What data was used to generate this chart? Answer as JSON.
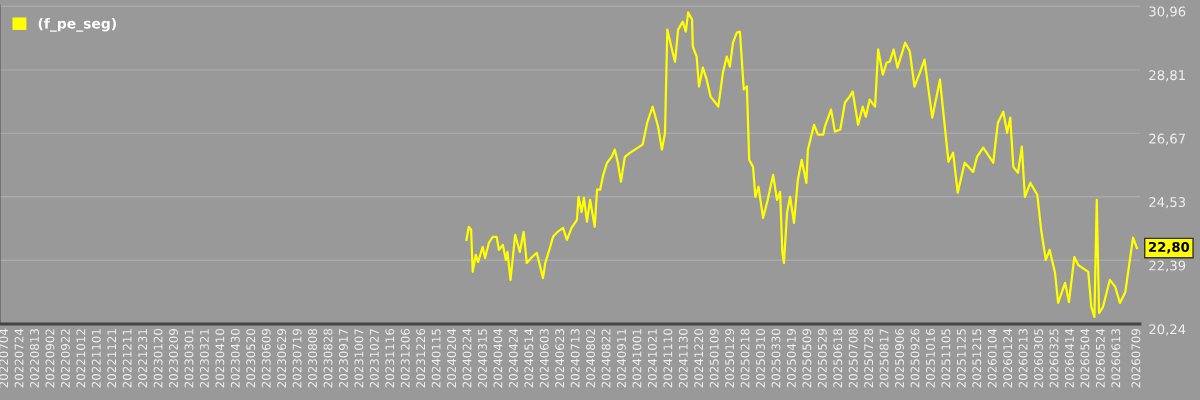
{
  "chart_data": {
    "type": "line",
    "x": [
      "2024-02-22",
      "2024-02-25",
      "2024-02-28",
      "2024-03-01",
      "2024-03-05",
      "2024-03-08",
      "2024-03-14",
      "2024-03-17",
      "2024-03-22",
      "2024-03-27",
      "2024-04-01",
      "2024-04-04",
      "2024-04-09",
      "2024-04-13",
      "2024-04-15",
      "2024-04-19",
      "2024-04-25",
      "2024-05-01",
      "2024-05-06",
      "2024-05-10",
      "2024-05-17",
      "2024-05-23",
      "2024-05-31",
      "2024-06-03",
      "2024-06-09",
      "2024-06-13",
      "2024-06-19",
      "2024-06-26",
      "2024-07-01",
      "2024-07-07",
      "2024-07-14",
      "2024-07-16",
      "2024-07-20",
      "2024-07-23",
      "2024-07-27",
      "2024-07-31",
      "2024-08-06",
      "2024-08-09",
      "2024-08-13",
      "2024-08-17",
      "2024-08-22",
      "2024-08-28",
      "2024-09-01",
      "2024-09-05",
      "2024-09-09",
      "2024-09-14",
      "2024-09-21",
      "2024-10-07",
      "2024-10-13",
      "2024-10-20",
      "2024-10-27",
      "2024-11-01",
      "2024-11-05",
      "2024-11-08",
      "2024-11-14",
      "2024-11-18",
      "2024-11-22",
      "2024-11-28",
      "2024-12-02",
      "2024-12-05",
      "2024-12-10",
      "2024-12-11",
      "2024-12-16",
      "2024-12-19",
      "2024-12-24",
      "2024-12-29",
      "2025-01-03",
      "2025-01-09",
      "2025-01-13",
      "2025-01-19",
      "2025-01-24",
      "2025-01-28",
      "2025-02-01",
      "2025-02-06",
      "2025-02-10",
      "2025-02-15",
      "2025-02-19",
      "2025-02-22",
      "2025-02-27",
      "2025-03-02",
      "2025-03-06",
      "2025-03-12",
      "2025-03-18",
      "2025-03-25",
      "2025-03-30",
      "2025-04-03",
      "2025-04-06",
      "2025-04-08",
      "2025-04-12",
      "2025-04-16",
      "2025-04-21",
      "2025-04-26",
      "2025-05-01",
      "2025-05-07",
      "2025-05-09",
      "2025-05-17",
      "2025-05-22",
      "2025-05-29",
      "2025-05-31",
      "2025-06-08",
      "2025-06-13",
      "2025-06-20",
      "2025-06-26",
      "2025-07-02",
      "2025-07-06",
      "2025-07-13",
      "2025-07-19",
      "2025-07-23",
      "2025-07-28",
      "2025-08-04",
      "2025-08-08",
      "2025-08-14",
      "2025-08-19",
      "2025-08-23",
      "2025-08-28",
      "2025-09-02",
      "2025-09-12",
      "2025-09-18",
      "2025-09-24",
      "2025-10-01",
      "2025-10-07",
      "2025-10-17",
      "2025-10-27",
      "2025-11-07",
      "2025-11-13",
      "2025-11-19",
      "2025-11-28",
      "2025-12-09",
      "2025-12-14",
      "2025-12-22",
      "2026-01-04",
      "2026-01-10",
      "2026-01-17",
      "2026-01-22",
      "2026-01-26",
      "2026-01-30",
      "2026-02-05",
      "2026-02-10",
      "2026-02-14",
      "2026-02-21",
      "2026-03-02",
      "2026-03-07",
      "2026-03-13",
      "2026-03-18",
      "2026-03-25",
      "2026-03-29",
      "2026-04-07",
      "2026-04-12",
      "2026-04-19",
      "2026-04-24",
      "2026-05-07",
      "2026-05-11",
      "2026-05-15",
      "2026-05-18",
      "2026-05-21",
      "2026-05-26",
      "2026-06-04",
      "2026-06-11",
      "2026-06-17",
      "2026-06-24",
      "2026-06-28",
      "2026-07-04",
      "2026-07-09"
    ],
    "series": [
      {
        "name": "(f_pe_seg)",
        "color": "#ffff00",
        "values": [
          23.08,
          23.52,
          23.42,
          22.0,
          22.57,
          22.33,
          22.84,
          22.47,
          22.98,
          23.18,
          23.18,
          22.74,
          22.91,
          22.4,
          22.67,
          21.73,
          23.25,
          22.67,
          23.35,
          22.3,
          22.5,
          22.64,
          21.79,
          22.3,
          22.81,
          23.18,
          23.35,
          23.48,
          23.08,
          23.48,
          23.75,
          24.53,
          24.02,
          24.5,
          23.69,
          24.43,
          23.52,
          24.77,
          24.77,
          25.27,
          25.68,
          25.88,
          26.12,
          25.68,
          25.04,
          25.88,
          26.02,
          26.29,
          27.03,
          27.57,
          26.9,
          26.12,
          26.69,
          30.17,
          29.5,
          29.09,
          30.17,
          30.44,
          30.1,
          30.75,
          30.51,
          29.6,
          29.26,
          28.25,
          28.89,
          28.48,
          27.91,
          27.71,
          27.57,
          28.72,
          29.26,
          28.92,
          29.73,
          30.07,
          30.1,
          28.15,
          28.25,
          25.78,
          25.54,
          24.53,
          24.87,
          23.82,
          24.43,
          25.27,
          24.43,
          24.7,
          22.64,
          22.3,
          23.99,
          24.53,
          23.65,
          25.1,
          25.78,
          25.0,
          26.12,
          26.96,
          26.63,
          26.63,
          26.9,
          27.47,
          26.73,
          26.8,
          27.71,
          27.91,
          28.08,
          26.96,
          27.57,
          27.23,
          27.81,
          27.57,
          29.5,
          28.65,
          29.06,
          29.09,
          29.5,
          28.89,
          29.73,
          29.43,
          28.25,
          28.72,
          29.16,
          27.2,
          28.48,
          25.71,
          26.02,
          24.67,
          25.68,
          25.37,
          25.88,
          26.19,
          25.68,
          27.03,
          27.4,
          26.69,
          27.2,
          25.54,
          25.34,
          26.22,
          24.53,
          25.0,
          24.6,
          23.42,
          22.4,
          22.74,
          21.96,
          20.95,
          21.63,
          20.98,
          22.5,
          22.23,
          22.0,
          20.81,
          20.48,
          24.43,
          20.61,
          20.81,
          21.73,
          21.49,
          20.95,
          21.32,
          22.06,
          23.15,
          22.8
        ]
      }
    ],
    "xlim": [
      "2022-06-28",
      "2026-07-13"
    ],
    "xticks": [
      {
        "value": "2022-07-04",
        "label": "20220704"
      },
      {
        "value": "2022-07-24",
        "label": "20220724"
      },
      {
        "value": "2022-08-13",
        "label": "20220813"
      },
      {
        "value": "2022-09-02",
        "label": "20220902"
      },
      {
        "value": "2022-09-22",
        "label": "20220922"
      },
      {
        "value": "2022-10-12",
        "label": "20221012"
      },
      {
        "value": "2022-11-01",
        "label": "20221101"
      },
      {
        "value": "2022-11-21",
        "label": "20221121"
      },
      {
        "value": "2022-12-11",
        "label": "20221211"
      },
      {
        "value": "2022-12-31",
        "label": "20221231"
      },
      {
        "value": "2023-01-20",
        "label": "20230120"
      },
      {
        "value": "2023-02-09",
        "label": "20230209"
      },
      {
        "value": "2023-03-01",
        "label": "20230301"
      },
      {
        "value": "2023-03-21",
        "label": "20230321"
      },
      {
        "value": "2023-04-10",
        "label": "20230410"
      },
      {
        "value": "2023-04-30",
        "label": "20230430"
      },
      {
        "value": "2023-05-20",
        "label": "20230520"
      },
      {
        "value": "2023-06-09",
        "label": "20230609"
      },
      {
        "value": "2023-06-29",
        "label": "20230629"
      },
      {
        "value": "2023-07-19",
        "label": "20230719"
      },
      {
        "value": "2023-08-08",
        "label": "20230808"
      },
      {
        "value": "2023-08-28",
        "label": "20230828"
      },
      {
        "value": "2023-09-17",
        "label": "20230917"
      },
      {
        "value": "2023-10-07",
        "label": "20231007"
      },
      {
        "value": "2023-10-27",
        "label": "20231027"
      },
      {
        "value": "2023-11-16",
        "label": "20231116"
      },
      {
        "value": "2023-12-06",
        "label": "20231206"
      },
      {
        "value": "2023-12-26",
        "label": "20231226"
      },
      {
        "value": "2024-01-15",
        "label": "20240115"
      },
      {
        "value": "2024-02-04",
        "label": "20240204"
      },
      {
        "value": "2024-02-24",
        "label": "20240224"
      },
      {
        "value": "2024-03-15",
        "label": "20240315"
      },
      {
        "value": "2024-04-04",
        "label": "20240404"
      },
      {
        "value": "2024-04-24",
        "label": "20240424"
      },
      {
        "value": "2024-05-14",
        "label": "20240514"
      },
      {
        "value": "2024-06-03",
        "label": "20240603"
      },
      {
        "value": "2024-06-23",
        "label": "20240623"
      },
      {
        "value": "2024-07-13",
        "label": "20240713"
      },
      {
        "value": "2024-08-02",
        "label": "20240802"
      },
      {
        "value": "2024-08-22",
        "label": "20240822"
      },
      {
        "value": "2024-09-11",
        "label": "20240911"
      },
      {
        "value": "2024-10-01",
        "label": "20241001"
      },
      {
        "value": "2024-10-21",
        "label": "20241021"
      },
      {
        "value": "2024-11-10",
        "label": "20241110"
      },
      {
        "value": "2024-11-30",
        "label": "20241130"
      },
      {
        "value": "2024-12-20",
        "label": "20241220"
      },
      {
        "value": "2025-01-09",
        "label": "20250109"
      },
      {
        "value": "2025-01-29",
        "label": "20250129"
      },
      {
        "value": "2025-02-18",
        "label": "20250218"
      },
      {
        "value": "2025-03-10",
        "label": "20250310"
      },
      {
        "value": "2025-03-30",
        "label": "20250330"
      },
      {
        "value": "2025-04-19",
        "label": "20250419"
      },
      {
        "value": "2025-05-09",
        "label": "20250509"
      },
      {
        "value": "2025-05-29",
        "label": "20250529"
      },
      {
        "value": "2025-06-18",
        "label": "20250618"
      },
      {
        "value": "2025-07-08",
        "label": "20250708"
      },
      {
        "value": "2025-07-28",
        "label": "20250728"
      },
      {
        "value": "2025-08-17",
        "label": "20250817"
      },
      {
        "value": "2025-09-06",
        "label": "20250906"
      },
      {
        "value": "2025-09-26",
        "label": "20250926"
      },
      {
        "value": "2025-10-16",
        "label": "20251016"
      },
      {
        "value": "2025-11-05",
        "label": "20251105"
      },
      {
        "value": "2025-11-25",
        "label": "20251125"
      },
      {
        "value": "2025-12-15",
        "label": "20251215"
      },
      {
        "value": "2026-01-04",
        "label": "20260104"
      },
      {
        "value": "2026-01-24",
        "label": "20260124"
      },
      {
        "value": "2026-02-13",
        "label": "20260213"
      },
      {
        "value": "2026-03-05",
        "label": "20260305"
      },
      {
        "value": "2026-03-25",
        "label": "20260325"
      },
      {
        "value": "2026-04-14",
        "label": "20260414"
      },
      {
        "value": "2026-05-04",
        "label": "20260504"
      },
      {
        "value": "2026-05-24",
        "label": "20260524"
      },
      {
        "value": "2026-06-13",
        "label": "20260613"
      },
      {
        "value": "2026-07-09",
        "label": "20260709"
      }
    ],
    "ylim": [
      20.24,
      31.0
    ],
    "yticks": [
      {
        "value": 20.24,
        "label": "20,24"
      },
      {
        "value": 22.39,
        "label": "22,39"
      },
      {
        "value": 24.53,
        "label": "24,53"
      },
      {
        "value": 26.67,
        "label": "26,67"
      },
      {
        "value": 28.81,
        "label": "28,81"
      },
      {
        "value": 30.96,
        "label": "30,96"
      }
    ],
    "annotations": [
      {
        "text": "22,80",
        "x": "2026-07-09",
        "y": 22.8
      }
    ],
    "grid": "y",
    "legend": "top left",
    "marker": "none",
    "line_style": "solid"
  }
}
